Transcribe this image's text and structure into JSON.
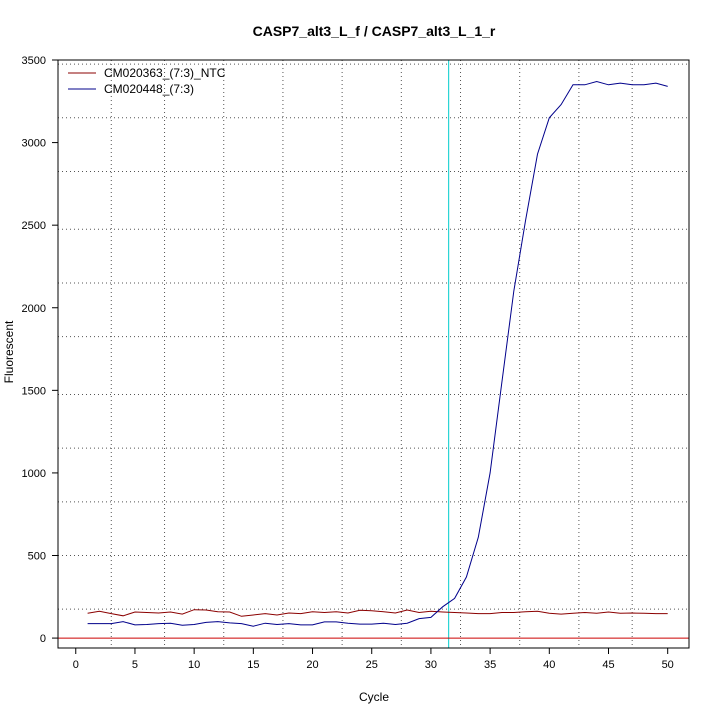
{
  "chart_data": {
    "type": "line",
    "title": "CASP7_alt3_L_f / CASP7_alt3_L_1_r",
    "xlabel": "Cycle",
    "ylabel": "Fluorescent",
    "xlim": [
      -1.5,
      51.8
    ],
    "ylim": [
      -60,
      3500
    ],
    "x_ticks": [
      0,
      5,
      10,
      15,
      20,
      25,
      30,
      35,
      40,
      45,
      50
    ],
    "y_ticks": [
      0,
      500,
      1000,
      1500,
      2000,
      2500,
      3000,
      3500
    ],
    "x_grid": [
      3,
      7.5,
      12.5,
      17.5,
      22.5,
      27.5,
      32.5,
      37.5,
      42.5,
      47
    ],
    "y_grid": [
      175,
      500,
      825,
      1150,
      1475,
      1825,
      2150,
      2475,
      2825,
      3150,
      3475
    ],
    "grid": true,
    "legend_position": "top-left",
    "threshold": {
      "x": 31.5,
      "color": "#00cccc"
    },
    "baseline": {
      "y": 0,
      "color": "#cc0000"
    },
    "x": [
      1,
      2,
      3,
      4,
      5,
      6,
      7,
      8,
      9,
      10,
      11,
      12,
      13,
      14,
      15,
      16,
      17,
      18,
      19,
      20,
      21,
      22,
      23,
      24,
      25,
      26,
      27,
      28,
      29,
      30,
      31,
      32,
      33,
      34,
      35,
      36,
      37,
      38,
      39,
      40,
      41,
      42,
      43,
      44,
      45,
      46,
      47,
      48,
      49,
      50
    ],
    "series": [
      {
        "name": "CM020363_(7:3)_NTC",
        "color": "#8b0000",
        "values": [
          150,
          162,
          148,
          135,
          158,
          155,
          152,
          158,
          145,
          172,
          170,
          160,
          158,
          132,
          140,
          148,
          140,
          152,
          148,
          160,
          155,
          160,
          152,
          168,
          165,
          160,
          152,
          170,
          155,
          162,
          158,
          155,
          152,
          148,
          148,
          155,
          155,
          160,
          162,
          150,
          145,
          150,
          155,
          150,
          158,
          150,
          152,
          150,
          148,
          148
        ]
      },
      {
        "name": "CM020448_(7:3)",
        "color": "#00008b",
        "values": [
          88,
          88,
          88,
          100,
          80,
          82,
          88,
          90,
          78,
          82,
          95,
          100,
          92,
          88,
          72,
          90,
          82,
          88,
          80,
          80,
          98,
          98,
          90,
          85,
          85,
          90,
          82,
          90,
          118,
          125,
          190,
          240,
          370,
          610,
          1000,
          1550,
          2100,
          2530,
          2930,
          3150,
          3230,
          3350,
          3350,
          3370,
          3350,
          3360,
          3350,
          3350,
          3360,
          3340
        ]
      }
    ]
  }
}
